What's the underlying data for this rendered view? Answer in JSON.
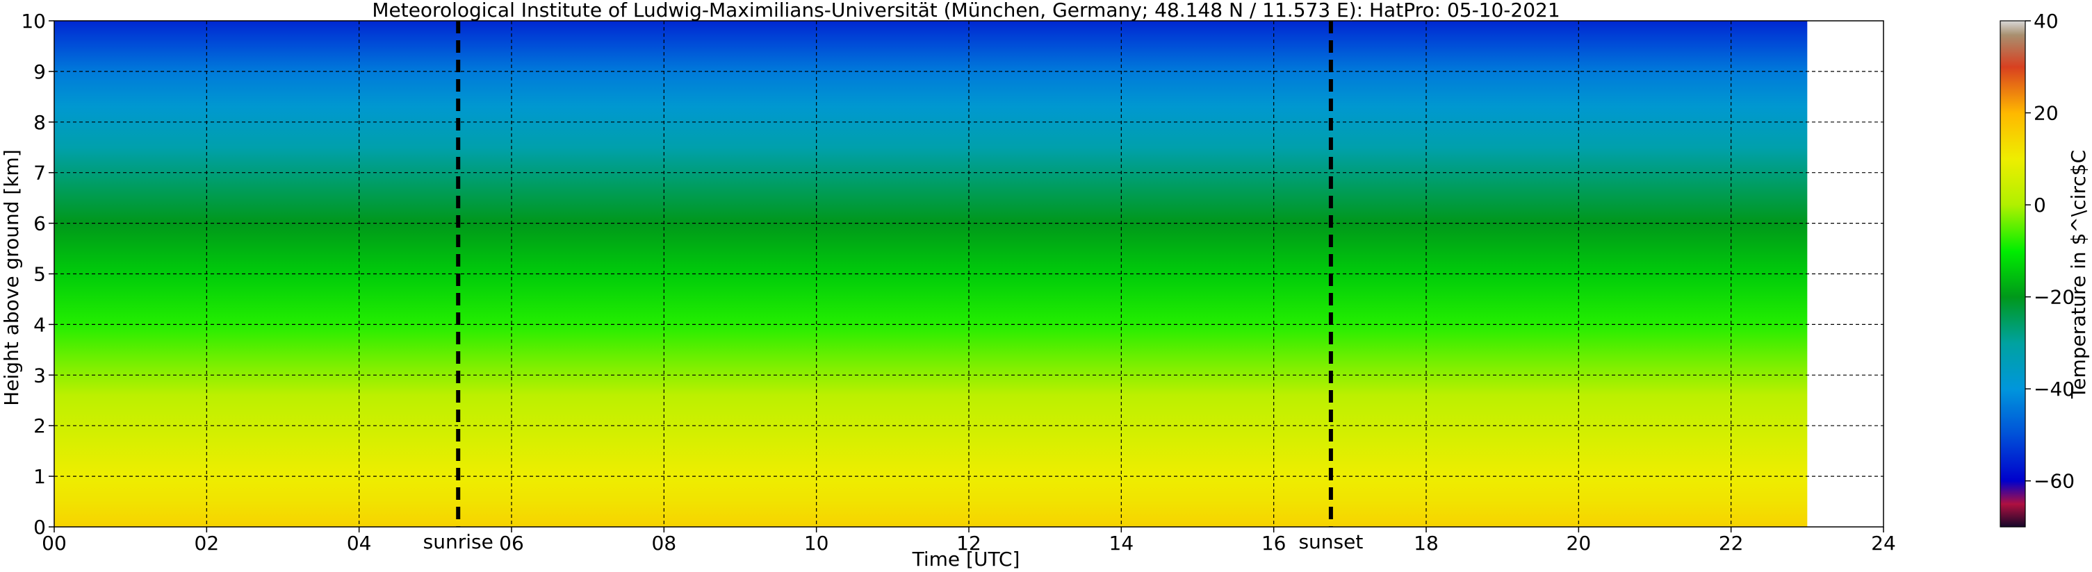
{
  "chart_data": {
    "type": "heatmap",
    "title": "Meteorological Institute of Ludwig-Maximilians-Universität (München, Germany; 48.148 N / 11.573 E):    HatPro: 05-10-2021",
    "xlabel": "Time [UTC]",
    "ylabel": "Height above ground [km]",
    "xlim": [
      0,
      24
    ],
    "ylim": [
      0,
      10
    ],
    "x_ticks": [
      0,
      2,
      4,
      6,
      8,
      10,
      12,
      14,
      16,
      18,
      20,
      22,
      24
    ],
    "x_tick_labels": [
      "00",
      "02",
      "04",
      "06",
      "08",
      "10",
      "12",
      "14",
      "16",
      "18",
      "20",
      "22",
      "24"
    ],
    "y_ticks": [
      0,
      1,
      2,
      3,
      4,
      5,
      6,
      7,
      8,
      9,
      10
    ],
    "y_tick_labels": [
      "0",
      "1",
      "2",
      "3",
      "4",
      "5",
      "6",
      "7",
      "8",
      "9",
      "10"
    ],
    "data_x_range": [
      0,
      23
    ],
    "grid": true,
    "annotations": [
      {
        "label": "sunrise",
        "x": 5.3,
        "style": "dashed"
      },
      {
        "label": "sunset",
        "x": 16.75,
        "style": "dashed"
      }
    ],
    "temperature_profile": [
      {
        "height_km": 0.0,
        "temp_c": 15
      },
      {
        "height_km": 0.5,
        "temp_c": 12
      },
      {
        "height_km": 1.0,
        "temp_c": 10
      },
      {
        "height_km": 1.8,
        "temp_c": 6
      },
      {
        "height_km": 2.6,
        "temp_c": 2
      },
      {
        "height_km": 3.2,
        "temp_c": -3
      },
      {
        "height_km": 4.0,
        "temp_c": -8
      },
      {
        "height_km": 5.0,
        "temp_c": -14
      },
      {
        "height_km": 6.0,
        "temp_c": -20
      },
      {
        "height_km": 6.7,
        "temp_c": -25
      },
      {
        "height_km": 7.5,
        "temp_c": -32
      },
      {
        "height_km": 8.3,
        "temp_c": -38
      },
      {
        "height_km": 9.0,
        "temp_c": -44
      },
      {
        "height_km": 9.5,
        "temp_c": -50
      },
      {
        "height_km": 10.0,
        "temp_c": -55
      }
    ],
    "colorbar": {
      "label": "Temperature in $^\\circ$C",
      "range": [
        -70,
        40
      ],
      "ticks": [
        -60,
        -40,
        -20,
        0,
        20,
        40
      ],
      "tick_labels": [
        "−60",
        "−40",
        "−20",
        "0",
        "20",
        "40"
      ],
      "stops": [
        {
          "value": -70,
          "color": "#14082a"
        },
        {
          "value": -65,
          "color": "#b01040"
        },
        {
          "value": -60,
          "color": "#0000cc"
        },
        {
          "value": -50,
          "color": "#0050d8"
        },
        {
          "value": -40,
          "color": "#0096dc"
        },
        {
          "value": -30,
          "color": "#00a2a0"
        },
        {
          "value": -20,
          "color": "#00981a"
        },
        {
          "value": -10,
          "color": "#00ee00"
        },
        {
          "value": 0,
          "color": "#b0f000"
        },
        {
          "value": 10,
          "color": "#eeee00"
        },
        {
          "value": 20,
          "color": "#ffb800"
        },
        {
          "value": 30,
          "color": "#d84020"
        },
        {
          "value": 37,
          "color": "#a89070"
        },
        {
          "value": 40,
          "color": "#d8d8d8"
        }
      ]
    }
  }
}
